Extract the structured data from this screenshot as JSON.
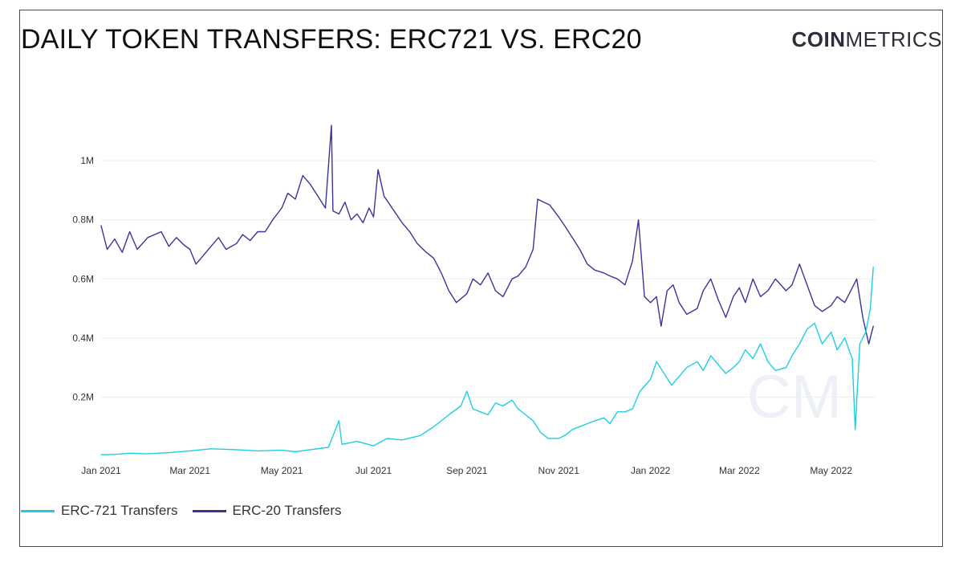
{
  "header": {
    "title": "DAILY TOKEN TRANSFERS: ERC721 VS. ERC20",
    "brand_bold": "COIN",
    "brand_light": "METRICS",
    "watermark": "CM"
  },
  "legend": {
    "items": [
      {
        "label": "ERC-721 Transfers",
        "color": "#1ccfe0"
      },
      {
        "label": "ERC-20 Transfers",
        "color": "#3a3594"
      }
    ]
  },
  "chart_data": {
    "type": "line",
    "x_type": "date",
    "x_range": [
      "2021-01-01",
      "2022-05-31"
    ],
    "ylim": [
      0,
      1150000
    ],
    "y_ticks": [
      {
        "value": 200000,
        "label": "0.2M"
      },
      {
        "value": 400000,
        "label": "0.4M"
      },
      {
        "value": 600000,
        "label": "0.6M"
      },
      {
        "value": 800000,
        "label": "0.8M"
      },
      {
        "value": 1000000,
        "label": "1M"
      }
    ],
    "x_ticks": [
      {
        "date": "2021-01-01",
        "label": "Jan 2021"
      },
      {
        "date": "2021-03-01",
        "label": "Mar 2021"
      },
      {
        "date": "2021-05-01",
        "label": "May 2021"
      },
      {
        "date": "2021-07-01",
        "label": "Jul 2021"
      },
      {
        "date": "2021-09-01",
        "label": "Sep 2021"
      },
      {
        "date": "2021-11-01",
        "label": "Nov 2021"
      },
      {
        "date": "2022-01-01",
        "label": "Jan 2022"
      },
      {
        "date": "2022-03-01",
        "label": "Mar 2022"
      },
      {
        "date": "2022-05-01",
        "label": "May 2022"
      }
    ],
    "grid": "horizontal",
    "legend_position": "bottom-left",
    "series": [
      {
        "name": "ERC-20 Transfers",
        "color": "#3a3594",
        "points": [
          [
            "2021-01-01",
            780000
          ],
          [
            "2021-01-05",
            700000
          ],
          [
            "2021-01-10",
            735000
          ],
          [
            "2021-01-15",
            690000
          ],
          [
            "2021-01-20",
            760000
          ],
          [
            "2021-01-25",
            700000
          ],
          [
            "2021-02-01",
            740000
          ],
          [
            "2021-02-10",
            760000
          ],
          [
            "2021-02-15",
            710000
          ],
          [
            "2021-02-20",
            740000
          ],
          [
            "2021-02-25",
            715000
          ],
          [
            "2021-03-01",
            700000
          ],
          [
            "2021-03-05",
            650000
          ],
          [
            "2021-03-10",
            680000
          ],
          [
            "2021-03-15",
            710000
          ],
          [
            "2021-03-20",
            740000
          ],
          [
            "2021-03-25",
            700000
          ],
          [
            "2021-04-01",
            720000
          ],
          [
            "2021-04-05",
            750000
          ],
          [
            "2021-04-10",
            730000
          ],
          [
            "2021-04-15",
            760000
          ],
          [
            "2021-04-20",
            760000
          ],
          [
            "2021-04-25",
            800000
          ],
          [
            "2021-05-01",
            840000
          ],
          [
            "2021-05-05",
            890000
          ],
          [
            "2021-05-10",
            870000
          ],
          [
            "2021-05-15",
            950000
          ],
          [
            "2021-05-20",
            920000
          ],
          [
            "2021-05-25",
            880000
          ],
          [
            "2021-05-30",
            840000
          ],
          [
            "2021-06-03",
            1120000
          ],
          [
            "2021-06-04",
            830000
          ],
          [
            "2021-06-08",
            820000
          ],
          [
            "2021-06-12",
            860000
          ],
          [
            "2021-06-16",
            800000
          ],
          [
            "2021-06-20",
            820000
          ],
          [
            "2021-06-24",
            790000
          ],
          [
            "2021-06-28",
            840000
          ],
          [
            "2021-07-01",
            810000
          ],
          [
            "2021-07-04",
            970000
          ],
          [
            "2021-07-08",
            880000
          ],
          [
            "2021-07-12",
            850000
          ],
          [
            "2021-07-16",
            820000
          ],
          [
            "2021-07-20",
            790000
          ],
          [
            "2021-07-25",
            760000
          ],
          [
            "2021-07-30",
            720000
          ],
          [
            "2021-08-05",
            690000
          ],
          [
            "2021-08-10",
            670000
          ],
          [
            "2021-08-15",
            620000
          ],
          [
            "2021-08-20",
            560000
          ],
          [
            "2021-08-25",
            520000
          ],
          [
            "2021-09-01",
            550000
          ],
          [
            "2021-09-05",
            600000
          ],
          [
            "2021-09-10",
            580000
          ],
          [
            "2021-09-15",
            620000
          ],
          [
            "2021-09-20",
            560000
          ],
          [
            "2021-09-25",
            540000
          ],
          [
            "2021-10-01",
            600000
          ],
          [
            "2021-10-05",
            610000
          ],
          [
            "2021-10-10",
            640000
          ],
          [
            "2021-10-15",
            700000
          ],
          [
            "2021-10-18",
            870000
          ],
          [
            "2021-10-22",
            860000
          ],
          [
            "2021-10-26",
            850000
          ],
          [
            "2021-11-01",
            810000
          ],
          [
            "2021-11-05",
            780000
          ],
          [
            "2021-11-10",
            740000
          ],
          [
            "2021-11-15",
            700000
          ],
          [
            "2021-11-20",
            650000
          ],
          [
            "2021-11-25",
            630000
          ],
          [
            "2021-12-01",
            620000
          ],
          [
            "2021-12-05",
            610000
          ],
          [
            "2021-12-10",
            600000
          ],
          [
            "2021-12-15",
            580000
          ],
          [
            "2021-12-20",
            660000
          ],
          [
            "2021-12-24",
            800000
          ],
          [
            "2021-12-28",
            540000
          ],
          [
            "2022-01-01",
            520000
          ],
          [
            "2022-01-05",
            540000
          ],
          [
            "2022-01-08",
            440000
          ],
          [
            "2022-01-12",
            560000
          ],
          [
            "2022-01-16",
            580000
          ],
          [
            "2022-01-20",
            520000
          ],
          [
            "2022-01-25",
            480000
          ],
          [
            "2022-02-01",
            500000
          ],
          [
            "2022-02-05",
            560000
          ],
          [
            "2022-02-10",
            600000
          ],
          [
            "2022-02-15",
            530000
          ],
          [
            "2022-02-20",
            470000
          ],
          [
            "2022-02-25",
            540000
          ],
          [
            "2022-03-01",
            570000
          ],
          [
            "2022-03-05",
            520000
          ],
          [
            "2022-03-10",
            600000
          ],
          [
            "2022-03-15",
            540000
          ],
          [
            "2022-03-20",
            560000
          ],
          [
            "2022-03-25",
            600000
          ],
          [
            "2022-04-01",
            560000
          ],
          [
            "2022-04-05",
            580000
          ],
          [
            "2022-04-10",
            650000
          ],
          [
            "2022-04-15",
            580000
          ],
          [
            "2022-04-20",
            510000
          ],
          [
            "2022-04-25",
            490000
          ],
          [
            "2022-05-01",
            510000
          ],
          [
            "2022-05-05",
            540000
          ],
          [
            "2022-05-10",
            520000
          ],
          [
            "2022-05-15",
            570000
          ],
          [
            "2022-05-18",
            600000
          ],
          [
            "2022-05-22",
            470000
          ],
          [
            "2022-05-26",
            380000
          ],
          [
            "2022-05-29",
            440000
          ]
        ]
      },
      {
        "name": "ERC-721 Transfers",
        "color": "#1ccfe0",
        "points": [
          [
            "2021-01-01",
            5000
          ],
          [
            "2021-01-10",
            6000
          ],
          [
            "2021-01-20",
            10000
          ],
          [
            "2021-02-01",
            8000
          ],
          [
            "2021-02-15",
            12000
          ],
          [
            "2021-03-01",
            18000
          ],
          [
            "2021-03-15",
            25000
          ],
          [
            "2021-04-01",
            22000
          ],
          [
            "2021-04-15",
            18000
          ],
          [
            "2021-05-01",
            20000
          ],
          [
            "2021-05-10",
            15000
          ],
          [
            "2021-05-20",
            22000
          ],
          [
            "2021-06-01",
            30000
          ],
          [
            "2021-06-08",
            120000
          ],
          [
            "2021-06-10",
            40000
          ],
          [
            "2021-06-20",
            50000
          ],
          [
            "2021-07-01",
            35000
          ],
          [
            "2021-07-10",
            60000
          ],
          [
            "2021-07-20",
            55000
          ],
          [
            "2021-08-01",
            70000
          ],
          [
            "2021-08-10",
            100000
          ],
          [
            "2021-08-20",
            140000
          ],
          [
            "2021-08-28",
            170000
          ],
          [
            "2021-09-01",
            220000
          ],
          [
            "2021-09-05",
            160000
          ],
          [
            "2021-09-10",
            150000
          ],
          [
            "2021-09-15",
            140000
          ],
          [
            "2021-09-20",
            180000
          ],
          [
            "2021-09-25",
            170000
          ],
          [
            "2021-10-01",
            190000
          ],
          [
            "2021-10-05",
            160000
          ],
          [
            "2021-10-10",
            140000
          ],
          [
            "2021-10-15",
            120000
          ],
          [
            "2021-10-20",
            80000
          ],
          [
            "2021-10-25",
            60000
          ],
          [
            "2021-11-01",
            60000
          ],
          [
            "2021-11-05",
            70000
          ],
          [
            "2021-11-10",
            90000
          ],
          [
            "2021-11-15",
            100000
          ],
          [
            "2021-11-20",
            110000
          ],
          [
            "2021-11-25",
            120000
          ],
          [
            "2021-12-01",
            130000
          ],
          [
            "2021-12-05",
            110000
          ],
          [
            "2021-12-10",
            150000
          ],
          [
            "2021-12-15",
            150000
          ],
          [
            "2021-12-20",
            160000
          ],
          [
            "2021-12-25",
            220000
          ],
          [
            "2022-01-01",
            260000
          ],
          [
            "2022-01-05",
            320000
          ],
          [
            "2022-01-10",
            280000
          ],
          [
            "2022-01-15",
            240000
          ],
          [
            "2022-01-20",
            270000
          ],
          [
            "2022-01-25",
            300000
          ],
          [
            "2022-02-01",
            320000
          ],
          [
            "2022-02-05",
            290000
          ],
          [
            "2022-02-10",
            340000
          ],
          [
            "2022-02-15",
            310000
          ],
          [
            "2022-02-20",
            280000
          ],
          [
            "2022-02-25",
            300000
          ],
          [
            "2022-03-01",
            320000
          ],
          [
            "2022-03-05",
            360000
          ],
          [
            "2022-03-10",
            330000
          ],
          [
            "2022-03-15",
            380000
          ],
          [
            "2022-03-20",
            320000
          ],
          [
            "2022-03-25",
            290000
          ],
          [
            "2022-04-01",
            300000
          ],
          [
            "2022-04-05",
            340000
          ],
          [
            "2022-04-10",
            380000
          ],
          [
            "2022-04-15",
            430000
          ],
          [
            "2022-04-20",
            450000
          ],
          [
            "2022-04-25",
            380000
          ],
          [
            "2022-05-01",
            420000
          ],
          [
            "2022-05-05",
            360000
          ],
          [
            "2022-05-10",
            400000
          ],
          [
            "2022-05-15",
            330000
          ],
          [
            "2022-05-17",
            90000
          ],
          [
            "2022-05-20",
            380000
          ],
          [
            "2022-05-24",
            420000
          ],
          [
            "2022-05-27",
            500000
          ],
          [
            "2022-05-29",
            640000
          ]
        ]
      }
    ]
  }
}
